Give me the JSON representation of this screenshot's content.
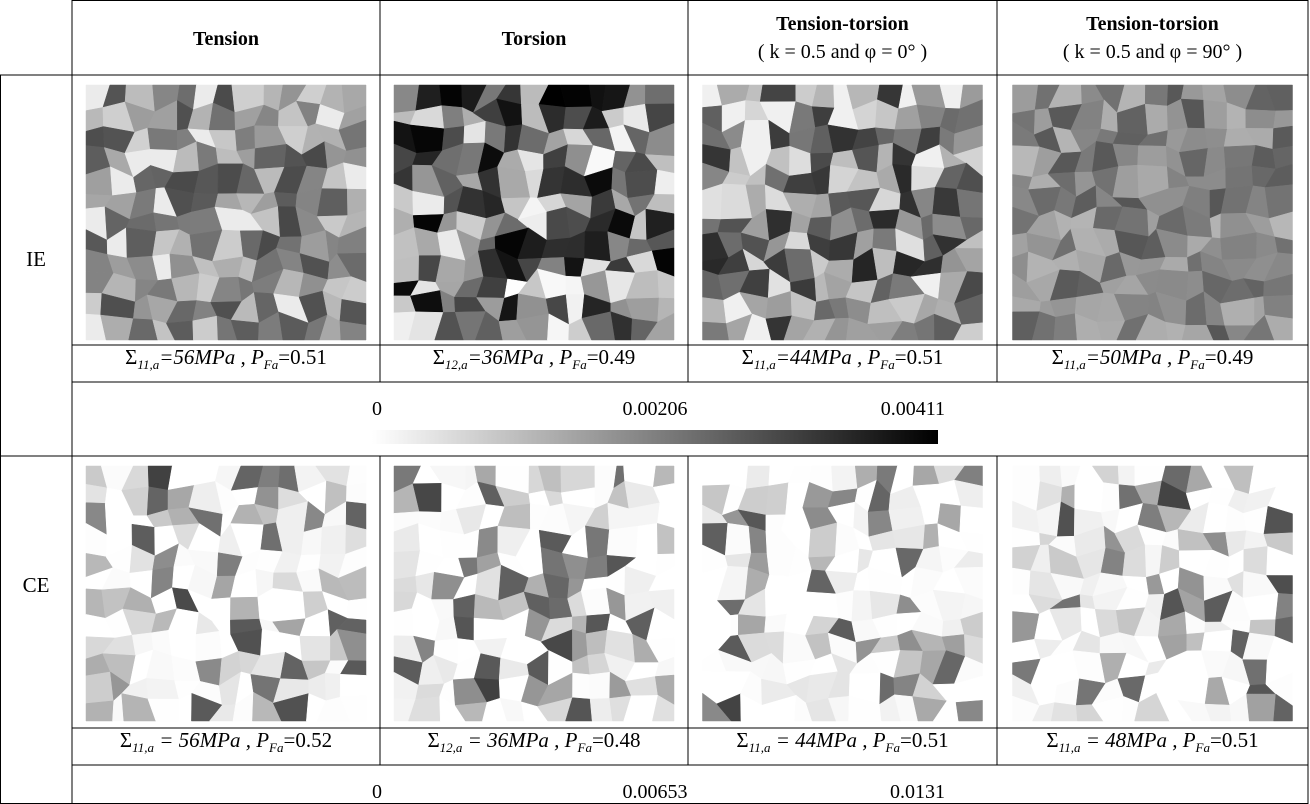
{
  "header": {
    "columns": [
      {
        "title": "Tension"
      },
      {
        "title": "Torsion"
      },
      {
        "title": "Tension-torsion",
        "condition": "( k = 0.5 and φ = 0° )"
      },
      {
        "title": "Tension-torsion",
        "condition": "( k = 0.5 and φ = 90° )"
      }
    ]
  },
  "rows": [
    {
      "label": "IE",
      "captions": [
        {
          "symbol": "Σ",
          "symbol_sub": "11,a",
          "stress": "=56MPa , ",
          "prob_symbol": "P",
          "prob_sub": "Fa",
          "prob": "=0.51"
        },
        {
          "symbol": "Σ",
          "symbol_sub": "12,a",
          "stress": "=36MPa , ",
          "prob_symbol": "P",
          "prob_sub": "Fa",
          "prob": "=0.49"
        },
        {
          "symbol": "Σ",
          "symbol_sub": "11,a",
          "stress": "=44MPa , ",
          "prob_symbol": "P",
          "prob_sub": "Fa",
          "prob": "=0.51"
        },
        {
          "symbol": "Σ",
          "symbol_sub": "11,a",
          "stress": "=50MPa , ",
          "prob_symbol": "P",
          "prob_sub": "Fa",
          "prob": "=0.49"
        }
      ],
      "colorbar": {
        "min": "0",
        "mid": "0.00206",
        "max": "0.00411"
      }
    },
    {
      "label": "CE",
      "captions": [
        {
          "symbol": "Σ",
          "symbol_sub": "11,a",
          "stress": " = 56MPa , ",
          "prob_symbol": "P",
          "prob_sub": "Fa",
          "prob": "=0.52"
        },
        {
          "symbol": "Σ",
          "symbol_sub": "12,a",
          "stress": " = 36MPa , ",
          "prob_symbol": "P",
          "prob_sub": "Fa",
          "prob": "=0.48"
        },
        {
          "symbol": "Σ",
          "symbol_sub": "11,a",
          "stress": " = 44MPa , ",
          "prob_symbol": "P",
          "prob_sub": "Fa",
          "prob": "=0.51"
        },
        {
          "symbol": "Σ",
          "symbol_sub": "11,a",
          "stress": " = 48MPa , ",
          "prob_symbol": "P",
          "prob_sub": "Fa",
          "prob": "=0.51"
        }
      ],
      "colorbar": {
        "min": "0",
        "mid": "0.00653",
        "max": "0.0131"
      }
    }
  ]
}
